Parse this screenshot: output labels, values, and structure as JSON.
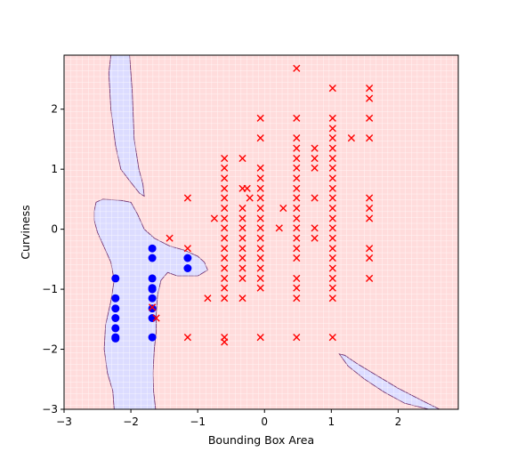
{
  "chart_data": {
    "type": "scatter",
    "title": "",
    "xlabel": "Bounding Box Area",
    "ylabel": "Curviness",
    "xlim": [
      -3,
      2.9
    ],
    "ylim": [
      -3,
      2.9
    ],
    "xticks": [
      -3,
      -2,
      -1,
      0,
      1,
      2
    ],
    "yticks": [
      -3,
      -2,
      -1,
      0,
      1,
      2
    ],
    "xtick_labels": [
      "−3",
      "−2",
      "−1",
      "0",
      "1",
      "2"
    ],
    "ytick_labels": [
      "−3",
      "−2",
      "−1",
      "0",
      "1",
      "2"
    ],
    "grid": false,
    "legend": "none",
    "colors": {
      "class_1": "#0000ff",
      "class_0": "#ff0000",
      "region_class_1": "#dcdcff",
      "region_class_0": "#ffdcdc",
      "boundary": "#6a2a6a"
    },
    "series": [
      {
        "marker": "circle",
        "color": "#0000ff",
        "points": [
          [
            -2.23,
            -0.82
          ],
          [
            -2.23,
            -1.15
          ],
          [
            -2.23,
            -1.32
          ],
          [
            -2.23,
            -1.48
          ],
          [
            -2.23,
            -1.65
          ],
          [
            -2.23,
            -1.8
          ],
          [
            -2.23,
            -1.82
          ],
          [
            -1.68,
            -0.32
          ],
          [
            -1.68,
            -0.48
          ],
          [
            -1.68,
            -0.82
          ],
          [
            -1.68,
            -0.98
          ],
          [
            -1.68,
            -1.15
          ],
          [
            -1.68,
            -1.32
          ],
          [
            -1.68,
            -1.48
          ],
          [
            -1.68,
            -1.8
          ],
          [
            -1.68,
            -1.0
          ],
          [
            -1.15,
            -0.48
          ],
          [
            -1.15,
            -0.65
          ]
        ]
      },
      {
        "marker": "x",
        "color": "#ff0000",
        "points": [
          [
            -1.68,
            -1.3
          ],
          [
            -1.62,
            -1.48
          ],
          [
            -1.42,
            -0.15
          ],
          [
            -1.15,
            -0.32
          ],
          [
            -1.15,
            0.52
          ],
          [
            -1.15,
            -1.8
          ],
          [
            -0.85,
            -1.15
          ],
          [
            -0.75,
            0.18
          ],
          [
            -0.6,
            1.18
          ],
          [
            -0.6,
            1.02
          ],
          [
            -0.6,
            0.85
          ],
          [
            -0.6,
            0.68
          ],
          [
            -0.6,
            0.52
          ],
          [
            -0.6,
            0.35
          ],
          [
            -0.6,
            0.18
          ],
          [
            -0.6,
            0.02
          ],
          [
            -0.6,
            -0.15
          ],
          [
            -0.6,
            -0.32
          ],
          [
            -0.6,
            -0.48
          ],
          [
            -0.6,
            -0.65
          ],
          [
            -0.6,
            -0.82
          ],
          [
            -0.6,
            -0.98
          ],
          [
            -0.6,
            -1.15
          ],
          [
            -0.6,
            -1.8
          ],
          [
            -0.6,
            -1.88
          ],
          [
            -0.33,
            1.18
          ],
          [
            -0.33,
            0.68
          ],
          [
            -0.33,
            0.35
          ],
          [
            -0.33,
            0.18
          ],
          [
            -0.33,
            0.02
          ],
          [
            -0.33,
            -0.15
          ],
          [
            -0.33,
            -0.32
          ],
          [
            -0.33,
            -0.48
          ],
          [
            -0.33,
            -0.65
          ],
          [
            -0.33,
            -0.82
          ],
          [
            -0.33,
            -1.15
          ],
          [
            -0.26,
            0.68
          ],
          [
            -0.22,
            0.52
          ],
          [
            -0.06,
            1.85
          ],
          [
            -0.06,
            1.52
          ],
          [
            -0.06,
            1.02
          ],
          [
            -0.06,
            0.85
          ],
          [
            -0.06,
            0.68
          ],
          [
            -0.06,
            0.52
          ],
          [
            -0.06,
            0.35
          ],
          [
            -0.06,
            0.18
          ],
          [
            -0.06,
            0.02
          ],
          [
            -0.06,
            -0.15
          ],
          [
            -0.06,
            -0.32
          ],
          [
            -0.06,
            -0.48
          ],
          [
            -0.06,
            -0.65
          ],
          [
            -0.06,
            -0.82
          ],
          [
            -0.06,
            -0.98
          ],
          [
            -0.06,
            -1.8
          ],
          [
            0.22,
            0.02
          ],
          [
            0.28,
            0.35
          ],
          [
            0.48,
            2.68
          ],
          [
            0.48,
            1.85
          ],
          [
            0.48,
            1.52
          ],
          [
            0.48,
            1.35
          ],
          [
            0.48,
            1.18
          ],
          [
            0.48,
            1.02
          ],
          [
            0.48,
            0.85
          ],
          [
            0.48,
            0.68
          ],
          [
            0.48,
            0.52
          ],
          [
            0.48,
            0.35
          ],
          [
            0.48,
            0.18
          ],
          [
            0.48,
            0.02
          ],
          [
            0.48,
            -0.15
          ],
          [
            0.48,
            -0.32
          ],
          [
            0.48,
            -0.48
          ],
          [
            0.48,
            -0.82
          ],
          [
            0.48,
            -0.98
          ],
          [
            0.48,
            -1.15
          ],
          [
            0.48,
            -1.8
          ],
          [
            0.75,
            1.35
          ],
          [
            0.75,
            1.18
          ],
          [
            0.75,
            1.02
          ],
          [
            0.75,
            0.52
          ],
          [
            0.75,
            0.02
          ],
          [
            0.75,
            -0.15
          ],
          [
            1.02,
            2.35
          ],
          [
            1.02,
            1.85
          ],
          [
            1.02,
            1.68
          ],
          [
            1.02,
            1.52
          ],
          [
            1.02,
            1.35
          ],
          [
            1.02,
            1.18
          ],
          [
            1.02,
            1.02
          ],
          [
            1.02,
            0.85
          ],
          [
            1.02,
            0.68
          ],
          [
            1.02,
            0.52
          ],
          [
            1.02,
            0.35
          ],
          [
            1.02,
            0.18
          ],
          [
            1.02,
            0.02
          ],
          [
            1.02,
            -0.15
          ],
          [
            1.02,
            -0.32
          ],
          [
            1.02,
            -0.48
          ],
          [
            1.02,
            -0.65
          ],
          [
            1.02,
            -0.82
          ],
          [
            1.02,
            -0.98
          ],
          [
            1.02,
            -1.15
          ],
          [
            1.02,
            -1.8
          ],
          [
            1.3,
            1.52
          ],
          [
            1.57,
            2.35
          ],
          [
            1.57,
            2.18
          ],
          [
            1.57,
            1.85
          ],
          [
            1.57,
            1.52
          ],
          [
            1.57,
            0.52
          ],
          [
            1.57,
            0.35
          ],
          [
            1.57,
            0.18
          ],
          [
            1.57,
            -0.32
          ],
          [
            1.57,
            -0.48
          ],
          [
            1.57,
            -0.82
          ]
        ]
      }
    ],
    "decision_regions": [
      {
        "class": "class_1",
        "polygon": [
          [
            -2.3,
            2.9
          ],
          [
            -2.02,
            2.9
          ],
          [
            -1.98,
            2.3
          ],
          [
            -1.95,
            1.5
          ],
          [
            -1.88,
            1.0
          ],
          [
            -1.82,
            0.75
          ],
          [
            -1.8,
            0.55
          ],
          [
            -1.87,
            0.6
          ],
          [
            -2.0,
            0.78
          ],
          [
            -2.15,
            1.0
          ],
          [
            -2.23,
            1.4
          ],
          [
            -2.3,
            2.0
          ],
          [
            -2.33,
            2.6
          ]
        ]
      },
      {
        "class": "class_1",
        "polygon": [
          [
            -2.55,
            0.3
          ],
          [
            -2.52,
            0.45
          ],
          [
            -2.42,
            0.5
          ],
          [
            -2.15,
            0.48
          ],
          [
            -2.0,
            0.45
          ],
          [
            -1.9,
            0.25
          ],
          [
            -1.8,
            0.0
          ],
          [
            -1.65,
            -0.15
          ],
          [
            -1.42,
            -0.28
          ],
          [
            -1.2,
            -0.35
          ],
          [
            -1.0,
            -0.45
          ],
          [
            -0.9,
            -0.55
          ],
          [
            -0.85,
            -0.68
          ],
          [
            -1.0,
            -0.78
          ],
          [
            -1.3,
            -0.78
          ],
          [
            -1.45,
            -0.72
          ],
          [
            -1.55,
            -0.85
          ],
          [
            -1.6,
            -1.1
          ],
          [
            -1.62,
            -1.4
          ],
          [
            -1.62,
            -1.7
          ],
          [
            -1.65,
            -2.0
          ],
          [
            -1.67,
            -2.4
          ],
          [
            -1.66,
            -2.7
          ],
          [
            -1.63,
            -3.0
          ],
          [
            -2.25,
            -3.0
          ],
          [
            -2.27,
            -2.7
          ],
          [
            -2.35,
            -2.4
          ],
          [
            -2.4,
            -2.0
          ],
          [
            -2.38,
            -1.6
          ],
          [
            -2.3,
            -1.2
          ],
          [
            -2.25,
            -0.85
          ],
          [
            -2.3,
            -0.55
          ],
          [
            -2.4,
            -0.3
          ],
          [
            -2.5,
            -0.05
          ],
          [
            -2.55,
            0.15
          ]
        ]
      },
      {
        "class": "class_1",
        "polygon": [
          [
            1.12,
            -2.08
          ],
          [
            1.2,
            -2.1
          ],
          [
            1.4,
            -2.25
          ],
          [
            1.7,
            -2.45
          ],
          [
            2.0,
            -2.65
          ],
          [
            2.35,
            -2.85
          ],
          [
            2.62,
            -3.0
          ],
          [
            2.46,
            -3.0
          ],
          [
            2.1,
            -2.9
          ],
          [
            1.8,
            -2.72
          ],
          [
            1.5,
            -2.5
          ],
          [
            1.25,
            -2.28
          ]
        ]
      }
    ]
  }
}
